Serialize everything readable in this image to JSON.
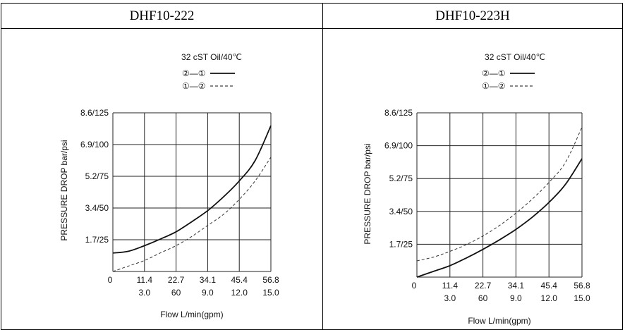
{
  "headers": [
    "DHF10-222",
    "DHF10-223H"
  ],
  "colors": {
    "solid": "#111111",
    "dashed": "#333333",
    "grid": "#222222"
  },
  "chart_data": [
    {
      "type": "line",
      "title": "DHF10-222",
      "oil_note": "32 cST Oil/40℃",
      "legend": [
        {
          "label": "②—①",
          "style": "solid"
        },
        {
          "label": "①—②",
          "style": "dashed"
        }
      ],
      "xlabel": "Flow L/min(gpm)",
      "ylabel": "PRESSURE DROP bar/psi",
      "x_ticks": [
        "11.4",
        "22.7",
        "34.1",
        "45.4",
        "56.8"
      ],
      "x_ticks_gpm": [
        "3.0",
        "60",
        "9.0",
        "12.0",
        "15.0"
      ],
      "x_origin": "0",
      "y_ticks": [
        "1.7/25",
        "3.4/50",
        "5.2/75",
        "6.9/100",
        "8.6/125"
      ],
      "xlim": [
        0,
        56.8
      ],
      "ylim": [
        0,
        8.6
      ],
      "grid": true,
      "series": [
        {
          "name": "②—①",
          "style": "solid",
          "x": [
            0,
            5.7,
            11.4,
            17.0,
            22.7,
            28.4,
            34.1,
            39.8,
            45.4,
            51.1,
            56.8
          ],
          "y": [
            1.0,
            1.1,
            1.4,
            1.75,
            2.15,
            2.7,
            3.3,
            4.05,
            4.9,
            6.0,
            7.9
          ]
        },
        {
          "name": "①—②",
          "style": "dashed",
          "x": [
            0,
            5.7,
            11.4,
            17.0,
            22.7,
            28.4,
            34.1,
            39.8,
            45.4,
            51.1,
            56.8
          ],
          "y": [
            0.0,
            0.3,
            0.6,
            1.0,
            1.4,
            1.9,
            2.5,
            3.1,
            3.9,
            4.9,
            6.2
          ]
        }
      ]
    },
    {
      "type": "line",
      "title": "DHF10-223H",
      "oil_note": "32 cST Oil/40℃",
      "legend": [
        {
          "label": "②—①",
          "style": "solid"
        },
        {
          "label": "①—②",
          "style": "dashed"
        }
      ],
      "xlabel": "Flow L/min(gpm)",
      "ylabel": "PRESSURE DROP bar/psi",
      "x_ticks": [
        "11.4",
        "22.7",
        "34.1",
        "45.4",
        "56.8"
      ],
      "x_ticks_gpm": [
        "3.0",
        "60",
        "9.0",
        "12.0",
        "15.0"
      ],
      "x_origin": "0",
      "y_ticks": [
        "1.7/25",
        "3.4/50",
        "5.2/75",
        "6.9/100",
        "8.6/125"
      ],
      "xlim": [
        0,
        56.8
      ],
      "ylim": [
        0,
        8.6
      ],
      "grid": true,
      "series": [
        {
          "name": "②—①",
          "style": "solid",
          "x": [
            0,
            5.7,
            11.4,
            17.0,
            22.7,
            28.4,
            34.1,
            39.8,
            45.4,
            51.1,
            56.8
          ],
          "y": [
            0.0,
            0.3,
            0.6,
            1.0,
            1.45,
            1.95,
            2.5,
            3.15,
            3.9,
            4.85,
            6.2
          ]
        },
        {
          "name": "①—②",
          "style": "dashed",
          "x": [
            0,
            5.7,
            11.4,
            17.0,
            22.7,
            28.4,
            34.1,
            39.8,
            45.4,
            51.1,
            56.8
          ],
          "y": [
            0.85,
            1.05,
            1.35,
            1.7,
            2.15,
            2.7,
            3.35,
            4.1,
            4.95,
            6.0,
            7.85
          ]
        }
      ]
    }
  ]
}
